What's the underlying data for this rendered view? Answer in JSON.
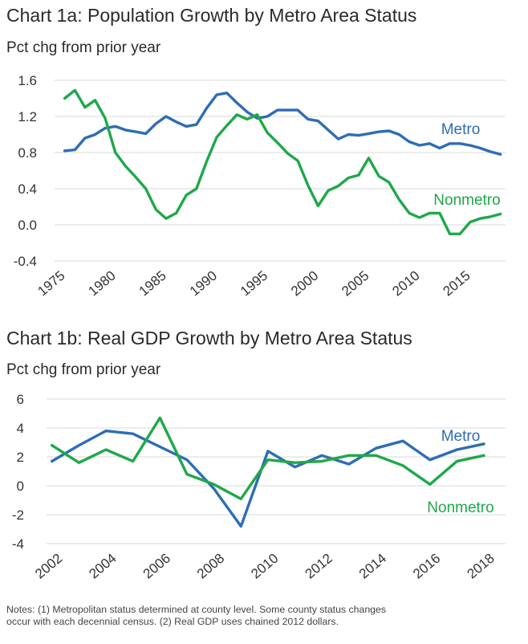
{
  "chart_data": [
    {
      "type": "line",
      "title": "Chart 1a: Population Growth by Metro Area Status",
      "ylabel": "Pct chg from prior year",
      "xlabel": "",
      "ylim": [
        -0.4,
        1.6
      ],
      "yticks": [
        "1.6",
        "1.2",
        "0.8",
        "0.4",
        "0.0",
        "-0.4"
      ],
      "ytick_values": [
        1.6,
        1.2,
        0.8,
        0.4,
        0.0,
        -0.4
      ],
      "xlim": [
        1975,
        2019.5
      ],
      "xticks": [
        "1975",
        "1980",
        "1985",
        "1990",
        "1995",
        "2000",
        "2005",
        "2010",
        "2015"
      ],
      "xtick_values": [
        1975,
        1980,
        1985,
        1990,
        1995,
        2000,
        2005,
        2010,
        2015
      ],
      "grid": true,
      "series": [
        {
          "name": "Metro",
          "color": "#2e6db4",
          "x": [
            1976,
            1977,
            1978,
            1979,
            1980,
            1981,
            1982,
            1983,
            1984,
            1985,
            1986,
            1987,
            1988,
            1989,
            1990,
            1991,
            1992,
            1993,
            1994,
            1995,
            1996,
            1997,
            1998,
            1999,
            2000,
            2001,
            2002,
            2003,
            2004,
            2005,
            2006,
            2007,
            2008,
            2009,
            2010,
            2011,
            2012,
            2013,
            2014,
            2015,
            2016,
            2017,
            2018,
            2019
          ],
          "values": [
            0.82,
            0.83,
            0.96,
            1.0,
            1.07,
            1.09,
            1.05,
            1.03,
            1.01,
            1.12,
            1.2,
            1.14,
            1.09,
            1.11,
            1.29,
            1.44,
            1.46,
            1.35,
            1.25,
            1.18,
            1.2,
            1.27,
            1.27,
            1.27,
            1.17,
            1.15,
            1.05,
            0.95,
            1.0,
            0.99,
            1.01,
            1.03,
            1.04,
            1.0,
            0.92,
            0.88,
            0.9,
            0.85,
            0.9,
            0.9,
            0.88,
            0.85,
            0.81,
            0.78
          ]
        },
        {
          "name": "Nonmetro",
          "color": "#1fa84a",
          "x": [
            1976,
            1977,
            1978,
            1979,
            1980,
            1981,
            1982,
            1983,
            1984,
            1985,
            1986,
            1987,
            1988,
            1989,
            1990,
            1991,
            1992,
            1993,
            1994,
            1995,
            1996,
            1997,
            1998,
            1999,
            2000,
            2001,
            2002,
            2003,
            2004,
            2005,
            2006,
            2007,
            2008,
            2009,
            2010,
            2011,
            2012,
            2013,
            2014,
            2015,
            2016,
            2017,
            2018,
            2019
          ],
          "values": [
            1.4,
            1.49,
            1.3,
            1.38,
            1.18,
            0.8,
            0.65,
            0.53,
            0.4,
            0.17,
            0.07,
            0.13,
            0.33,
            0.4,
            0.7,
            0.97,
            1.1,
            1.22,
            1.17,
            1.22,
            1.02,
            0.91,
            0.79,
            0.71,
            0.44,
            0.21,
            0.38,
            0.43,
            0.52,
            0.55,
            0.74,
            0.54,
            0.47,
            0.28,
            0.13,
            0.08,
            0.13,
            0.13,
            -0.1,
            -0.1,
            0.03,
            0.07,
            0.09,
            0.12
          ]
        }
      ]
    },
    {
      "type": "line",
      "title": "Chart 1b: Real GDP Growth by Metro Area Status",
      "ylabel": "Pct chg from prior year",
      "xlabel": "",
      "ylim": [
        -4,
        6
      ],
      "yticks": [
        "6",
        "4",
        "2",
        "0",
        "-2",
        "-4"
      ],
      "ytick_values": [
        6,
        4,
        2,
        0,
        -2,
        -4
      ],
      "xlim": [
        2001.8,
        2018.8
      ],
      "xticks": [
        "2002",
        "2004",
        "2006",
        "2008",
        "2010",
        "2012",
        "2014",
        "2016",
        "2018"
      ],
      "xtick_values": [
        2002,
        2004,
        2006,
        2008,
        2010,
        2012,
        2014,
        2016,
        2018
      ],
      "grid": true,
      "series": [
        {
          "name": "Metro",
          "color": "#2e6db4",
          "x": [
            2002,
            2003,
            2004,
            2005,
            2006,
            2007,
            2008,
            2009,
            2010,
            2011,
            2012,
            2013,
            2014,
            2015,
            2016,
            2017,
            2018
          ],
          "values": [
            1.7,
            2.8,
            3.8,
            3.6,
            2.7,
            1.8,
            -0.2,
            -2.8,
            2.4,
            1.3,
            2.1,
            1.5,
            2.6,
            3.1,
            1.8,
            2.5,
            2.9
          ]
        },
        {
          "name": "Nonmetro",
          "color": "#1fa84a",
          "x": [
            2002,
            2003,
            2004,
            2005,
            2006,
            2007,
            2008,
            2009,
            2010,
            2011,
            2012,
            2013,
            2014,
            2015,
            2016,
            2017,
            2018
          ],
          "values": [
            2.8,
            1.6,
            2.5,
            1.7,
            4.7,
            0.8,
            0.1,
            -0.9,
            1.8,
            1.6,
            1.7,
            2.1,
            2.1,
            1.4,
            0.1,
            1.7,
            2.1
          ]
        }
      ]
    }
  ],
  "notes": {
    "line1": "Notes: (1) Metropolitan status determined at county level. Some  county status changes",
    "line2": "occur with each decennial census. (2) Real GDP uses chained 2012 dollars."
  }
}
